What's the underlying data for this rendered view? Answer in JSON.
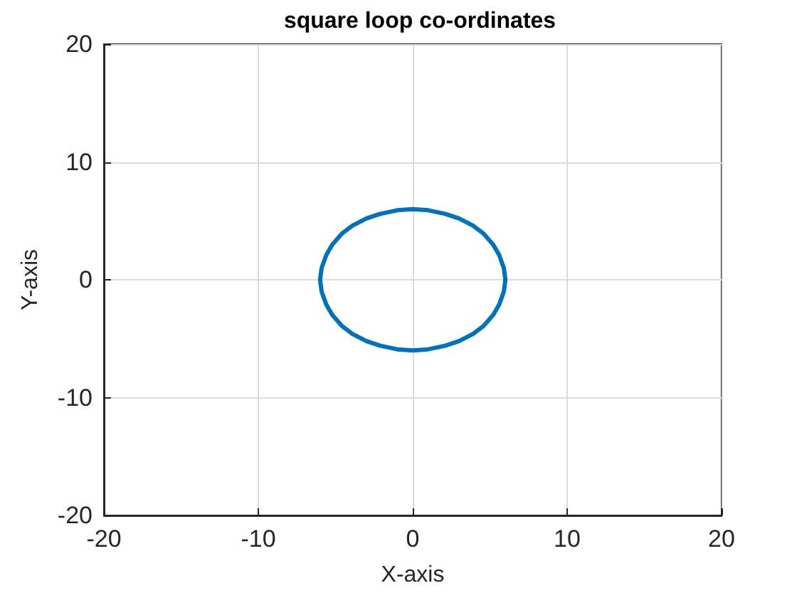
{
  "chart_data": {
    "type": "line",
    "title": "square loop co-ordinates",
    "xlabel": "X-axis",
    "ylabel": "Y-axis",
    "x": [
      6.0,
      5.9,
      5.6,
      5.2,
      4.6,
      3.9,
      3.0,
      2.1,
      1.0,
      0.0,
      -1.0,
      -2.1,
      -3.0,
      -3.9,
      -4.6,
      -5.2,
      -5.6,
      -5.9,
      -6.0,
      -5.9,
      -5.6,
      -5.2,
      -4.6,
      -3.9,
      -3.0,
      -2.1,
      -1.0,
      0.0,
      1.0,
      2.1,
      3.0,
      3.9,
      4.6,
      5.2,
      5.6,
      5.9,
      6.0,
      5.9,
      5.6,
      5.2
    ],
    "values": [
      0.0,
      1.0,
      2.1,
      3.0,
      3.9,
      4.6,
      5.2,
      5.6,
      5.9,
      6.0,
      5.9,
      5.6,
      5.2,
      4.6,
      3.9,
      3.0,
      2.1,
      1.0,
      0.0,
      -1.0,
      -2.1,
      -3.0,
      -3.9,
      -4.6,
      -5.2,
      -5.6,
      -5.9,
      -6.0,
      -5.9,
      -5.6,
      -5.2,
      -4.6,
      -3.9,
      -3.0,
      -2.1,
      -1.0,
      0.0,
      1.0,
      2.1,
      3.0
    ],
    "color": "#0072bd",
    "xlim": [
      -20,
      20
    ],
    "ylim": [
      -20,
      20
    ],
    "xticks": [
      -20,
      -10,
      0,
      10,
      20
    ],
    "yticks": [
      -20,
      -10,
      0,
      10,
      20
    ],
    "grid": true,
    "marker": "none",
    "line_style": "solid"
  }
}
